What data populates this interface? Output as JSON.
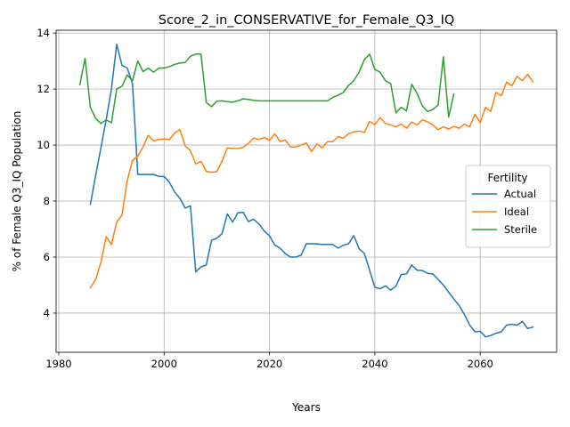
{
  "chart_data": {
    "type": "line",
    "title": "Score_2_in_CONSERVATIVE_for_Female_Q3_IQ",
    "xlabel": "Years",
    "ylabel": "% of Female Q3_IQ Population",
    "xlim": [
      1979.5,
      2074.5
    ],
    "ylim": [
      2.6,
      14.1
    ],
    "xticks": [
      1980,
      2000,
      2020,
      2040,
      2060
    ],
    "yticks": [
      4,
      6,
      8,
      10,
      12,
      14
    ],
    "grid": true,
    "legend": {
      "title": "Fertility",
      "position": "center-right"
    },
    "series": [
      {
        "name": "Actual",
        "color": "#1f77b4",
        "x": [
          1986,
          1987,
          1988,
          1989,
          1990,
          1991,
          1992,
          1993,
          1994,
          1995,
          1996,
          1997,
          1998,
          1999,
          2000,
          2001,
          2002,
          2003,
          2004,
          2005,
          2006,
          2007,
          2008,
          2009,
          2010,
          2011,
          2012,
          2013,
          2014,
          2015,
          2016,
          2017,
          2018,
          2019,
          2020,
          2021,
          2022,
          2023,
          2024,
          2025,
          2026,
          2027,
          2028,
          2029,
          2030,
          2031,
          2032,
          2033,
          2034,
          2035,
          2036,
          2037,
          2038,
          2039,
          2040,
          2041,
          2042,
          2043,
          2044,
          2045,
          2046,
          2047,
          2048,
          2049,
          2050,
          2051,
          2052,
          2053,
          2054,
          2055,
          2056,
          2057,
          2058,
          2059,
          2060,
          2061,
          2062,
          2063,
          2064,
          2065,
          2066,
          2067,
          2068,
          2069,
          2070
        ],
        "y": [
          7.88,
          8.9,
          9.9,
          10.9,
          12.0,
          13.6,
          12.85,
          12.75,
          12.2,
          8.95,
          8.95,
          8.95,
          8.95,
          8.88,
          8.88,
          8.67,
          8.32,
          8.1,
          7.75,
          7.83,
          5.47,
          5.65,
          5.72,
          6.6,
          6.67,
          6.84,
          7.54,
          7.25,
          7.58,
          7.6,
          7.27,
          7.35,
          7.18,
          6.93,
          6.76,
          6.43,
          6.32,
          6.12,
          6.0,
          6.0,
          6.07,
          6.48,
          6.47,
          6.47,
          6.45,
          6.45,
          6.45,
          6.32,
          6.42,
          6.47,
          6.77,
          6.3,
          6.13,
          5.53,
          4.92,
          4.87,
          4.97,
          4.82,
          4.96,
          5.38,
          5.4,
          5.72,
          5.53,
          5.52,
          5.42,
          5.4,
          5.2,
          5.0,
          4.75,
          4.5,
          4.27,
          3.95,
          3.57,
          3.33,
          3.35,
          3.15,
          3.2,
          3.28,
          3.33,
          3.57,
          3.6,
          3.57,
          3.7,
          3.45,
          3.5
        ]
      },
      {
        "name": "Ideal",
        "color": "#ff7f0e",
        "x": [
          1986,
          1987,
          1988,
          1989,
          1990,
          1991,
          1992,
          1993,
          1994,
          1995,
          1996,
          1997,
          1998,
          1999,
          2000,
          2001,
          2002,
          2003,
          2004,
          2005,
          2006,
          2007,
          2008,
          2009,
          2010,
          2011,
          2012,
          2013,
          2014,
          2015,
          2016,
          2017,
          2018,
          2019,
          2020,
          2021,
          2022,
          2023,
          2024,
          2025,
          2026,
          2027,
          2028,
          2029,
          2030,
          2031,
          2032,
          2033,
          2034,
          2035,
          2036,
          2037,
          2038,
          2039,
          2040,
          2041,
          2042,
          2043,
          2044,
          2045,
          2046,
          2047,
          2048,
          2049,
          2050,
          2051,
          2052,
          2053,
          2054,
          2055,
          2056,
          2057,
          2058,
          2059,
          2060,
          2061,
          2062,
          2063,
          2064,
          2065,
          2066,
          2067,
          2068,
          2069,
          2070
        ],
        "y": [
          4.9,
          5.2,
          5.8,
          6.73,
          6.45,
          7.25,
          7.5,
          8.73,
          9.45,
          9.6,
          9.93,
          10.35,
          10.15,
          10.2,
          10.22,
          10.2,
          10.43,
          10.55,
          9.97,
          9.8,
          9.33,
          9.42,
          9.06,
          9.03,
          9.05,
          9.43,
          9.9,
          9.88,
          9.88,
          9.92,
          10.06,
          10.25,
          10.2,
          10.27,
          10.17,
          10.4,
          10.13,
          10.18,
          9.93,
          9.93,
          10.0,
          10.07,
          9.77,
          10.04,
          9.9,
          10.12,
          10.12,
          10.3,
          10.25,
          10.4,
          10.47,
          10.5,
          10.45,
          10.84,
          10.73,
          10.98,
          10.77,
          10.72,
          10.65,
          10.75,
          10.6,
          10.82,
          10.72,
          10.9,
          10.83,
          10.72,
          10.55,
          10.65,
          10.57,
          10.67,
          10.6,
          10.75,
          10.65,
          11.1,
          10.8,
          11.35,
          11.2,
          11.88,
          11.76,
          12.25,
          12.12,
          12.45,
          12.3,
          12.53,
          12.25
        ]
      },
      {
        "name": "Sterile",
        "color": "#2ca02c",
        "x": [
          1984,
          1985,
          1986,
          1987,
          1988,
          1989,
          1990,
          1991,
          1992,
          1993,
          1994,
          1995,
          1996,
          1997,
          1998,
          1999,
          2000,
          2001,
          2002,
          2003,
          2004,
          2005,
          2006,
          2007,
          2008,
          2009,
          2010,
          2011,
          2012,
          2013,
          2014,
          2015,
          2016,
          2017,
          2018,
          2019,
          2020,
          2021,
          2022,
          2023,
          2024,
          2025,
          2026,
          2027,
          2028,
          2029,
          2030,
          2031,
          2032,
          2033,
          2034,
          2035,
          2036,
          2037,
          2038,
          2039,
          2040,
          2041,
          2042,
          2043,
          2044,
          2045,
          2046,
          2047,
          2048,
          2049,
          2050,
          2051,
          2052,
          2053,
          2054,
          2055
        ],
        "y": [
          12.15,
          13.1,
          11.35,
          10.95,
          10.77,
          10.9,
          10.8,
          12.0,
          12.1,
          12.5,
          12.3,
          13.0,
          12.62,
          12.75,
          12.6,
          12.75,
          12.75,
          12.8,
          12.88,
          12.93,
          12.95,
          13.17,
          13.25,
          13.25,
          11.52,
          11.37,
          11.57,
          11.58,
          11.55,
          11.53,
          11.58,
          11.65,
          11.63,
          11.6,
          11.58,
          11.58,
          11.58,
          11.58,
          11.58,
          11.58,
          11.58,
          11.58,
          11.58,
          11.58,
          11.58,
          11.58,
          11.58,
          11.58,
          11.7,
          11.78,
          11.88,
          12.13,
          12.3,
          12.6,
          13.05,
          13.25,
          12.7,
          12.6,
          12.3,
          12.2,
          11.15,
          11.35,
          11.22,
          12.17,
          11.85,
          11.4,
          11.2,
          11.27,
          11.43,
          13.15,
          11.0,
          11.83
        ]
      }
    ]
  }
}
